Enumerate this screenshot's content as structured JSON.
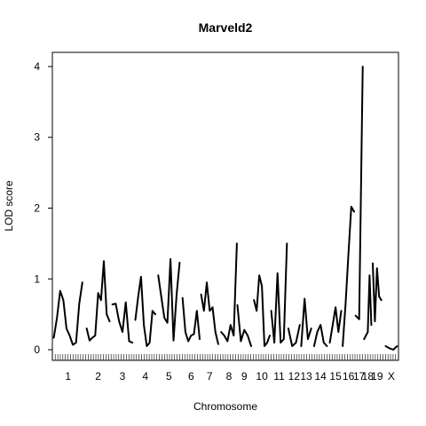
{
  "chart_data": {
    "type": "line",
    "title": "Marveld2",
    "xlabel": "Chromosome",
    "ylabel": "LOD score",
    "ylim": [
      -0.15,
      4.2
    ],
    "yticks": [
      0,
      1,
      2,
      3,
      4
    ],
    "grid": false,
    "chromosomes": [
      {
        "name": "1",
        "label": "1",
        "xrange": [
          0.0,
          1.0
        ],
        "values": [
          0.17,
          0.45,
          0.83,
          0.7,
          0.3,
          0.2,
          0.07,
          0.1,
          0.65,
          0.95
        ]
      },
      {
        "name": "2",
        "label": "2",
        "xrange": [
          1.15,
          1.95
        ],
        "values": [
          0.3,
          0.13,
          0.17,
          0.2,
          0.8,
          0.7,
          1.25,
          0.5,
          0.4
        ]
      },
      {
        "name": "3",
        "label": "3",
        "xrange": [
          2.05,
          2.75
        ],
        "values": [
          0.64,
          0.65,
          0.4,
          0.25,
          0.67,
          0.12,
          0.1
        ]
      },
      {
        "name": "4",
        "label": "4",
        "xrange": [
          2.85,
          3.55
        ],
        "values": [
          0.42,
          0.75,
          1.03,
          0.35,
          0.05,
          0.1,
          0.55,
          0.5
        ]
      },
      {
        "name": "5",
        "label": "5",
        "xrange": [
          3.65,
          4.4
        ],
        "values": [
          1.05,
          0.75,
          0.45,
          0.38,
          1.28,
          0.13,
          0.78,
          1.23
        ]
      },
      {
        "name": "6",
        "label": "6",
        "xrange": [
          4.5,
          5.1
        ],
        "values": [
          0.73,
          0.25,
          0.12,
          0.2,
          0.22,
          0.55,
          0.15
        ]
      },
      {
        "name": "7",
        "label": "7",
        "xrange": [
          5.15,
          5.75
        ],
        "values": [
          0.78,
          0.55,
          0.95,
          0.55,
          0.6,
          0.25,
          0.08
        ]
      },
      {
        "name": "8",
        "label": "8",
        "xrange": [
          5.85,
          6.4
        ],
        "values": [
          0.25,
          0.2,
          0.12,
          0.35,
          0.2,
          1.5
        ]
      },
      {
        "name": "9",
        "label": "9",
        "xrange": [
          6.42,
          6.9
        ],
        "values": [
          0.63,
          0.12,
          0.28,
          0.2,
          0.05
        ]
      },
      {
        "name": "10",
        "label": "10",
        "xrange": [
          7.0,
          7.55
        ],
        "values": [
          0.7,
          0.55,
          1.05,
          0.9,
          0.05,
          0.1,
          0.2
        ]
      },
      {
        "name": "11",
        "label": "11",
        "xrange": [
          7.6,
          8.15
        ],
        "values": [
          0.55,
          0.1,
          1.08,
          0.1,
          0.15,
          1.5
        ]
      },
      {
        "name": "12",
        "label": "12",
        "xrange": [
          8.2,
          8.6
        ],
        "values": [
          0.3,
          0.05,
          0.1,
          0.35
        ]
      },
      {
        "name": "13",
        "label": "13",
        "xrange": [
          8.65,
          9.0
        ],
        "values": [
          0.05,
          0.72,
          0.15,
          0.3
        ]
      },
      {
        "name": "14",
        "label": "14",
        "xrange": [
          9.1,
          9.55
        ],
        "values": [
          0.05,
          0.25,
          0.35,
          0.1,
          0.05
        ]
      },
      {
        "name": "15",
        "label": "15",
        "xrange": [
          9.65,
          10.05
        ],
        "values": [
          0.1,
          0.35,
          0.6,
          0.25,
          0.55
        ]
      },
      {
        "name": "16",
        "label": "16",
        "xrange": [
          10.1,
          10.5
        ],
        "values": [
          0.05,
          0.65,
          1.35,
          2.02,
          1.95
        ]
      },
      {
        "name": "17",
        "label": "17",
        "xrange": [
          10.55,
          10.8
        ],
        "values": [
          0.48,
          0.43,
          4.0
        ]
      },
      {
        "name": "18",
        "label": "18",
        "xrange": [
          10.85,
          11.1
        ],
        "values": [
          0.15,
          0.2,
          0.25,
          1.05,
          0.35
        ]
      },
      {
        "name": "19",
        "label": "19",
        "xrange": [
          11.15,
          11.45
        ],
        "values": [
          1.22,
          0.4,
          1.15,
          0.75,
          0.7
        ]
      },
      {
        "name": "X",
        "label": "X",
        "xrange": [
          11.6,
          12.0
        ],
        "values": [
          0.05,
          0.02,
          0.0,
          0.05
        ]
      }
    ],
    "xlim": [
      -0.05,
      12.05
    ],
    "rug_count": 135
  }
}
